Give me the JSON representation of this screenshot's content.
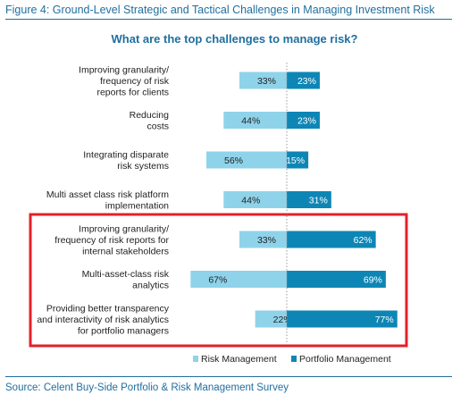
{
  "figure_title": "Figure 4: Ground-Level Strategic and Tactical Challenges in Managing Investment Risk",
  "source": "Source: Celent Buy-Side Portfolio & Risk Management Survey",
  "colors": {
    "risk": "#8fd3ea",
    "portfolio": "#0e86b5",
    "highlight": "#e3202a",
    "title": "#1f6f9f"
  },
  "chart_data": {
    "type": "bar",
    "orientation": "horizontal-diverging",
    "title": "What are the top challenges to manage risk?",
    "categories": [
      [
        "Improving granularity/",
        "frequency of risk",
        "reports for clients"
      ],
      [
        "Reducing",
        "costs"
      ],
      [
        "Integrating disparate",
        "risk systems"
      ],
      [
        "Multi asset class risk platform",
        "implementation"
      ],
      [
        "Improving granularity/",
        "frequency of risk reports for",
        "internal stakeholders"
      ],
      [
        "Multi-asset-class risk",
        "analytics"
      ],
      [
        "Providing better transparency",
        "and interactivity of risk analytics",
        "for portfolio managers"
      ]
    ],
    "series": [
      {
        "name": "Risk Management",
        "values": [
          33,
          44,
          56,
          44,
          33,
          67,
          22
        ]
      },
      {
        "name": "Portfolio Management",
        "values": [
          23,
          23,
          15,
          31,
          62,
          69,
          77
        ]
      }
    ],
    "value_labels": {
      "risk": [
        "33%",
        "44%",
        "56%",
        "44%",
        "33%",
        "67%",
        "22%"
      ],
      "portfolio": [
        "23%",
        "23%",
        "15%",
        "31%",
        "62%",
        "69%",
        "77%"
      ]
    },
    "highlighted_categories": [
      4,
      5,
      6
    ],
    "legend_position": "bottom",
    "grid": false
  }
}
